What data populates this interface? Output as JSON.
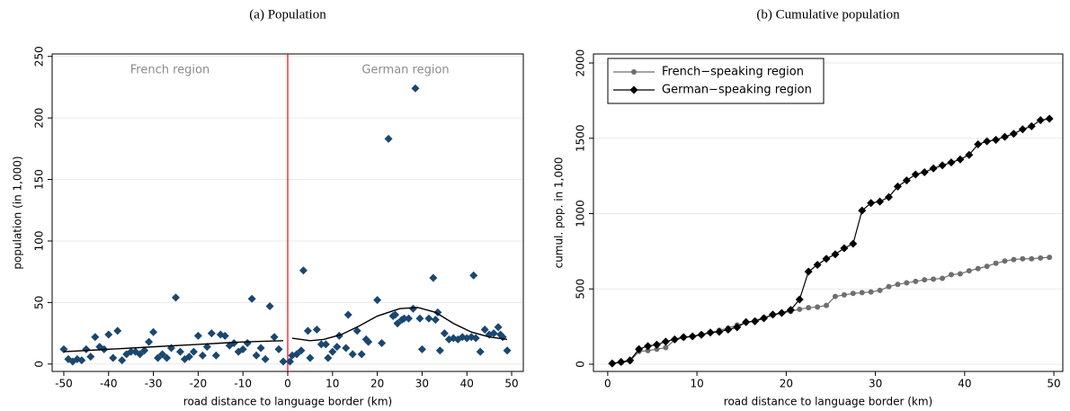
{
  "chart_data": [
    {
      "type": "scatter",
      "title": "(a) Population",
      "xlabel": "road distance to language border (km)",
      "ylabel": "population (in 1,000)",
      "xlim": [
        -52.6,
        52.6
      ],
      "ylim": [
        -6,
        252
      ],
      "xticks": [
        -50,
        -40,
        -30,
        -20,
        -10,
        0,
        10,
        20,
        30,
        40,
        50
      ],
      "yticks": [
        0,
        50,
        100,
        150,
        200,
        250
      ],
      "grid": true,
      "points": {
        "color": "#1a476f",
        "x": [
          -50,
          -49,
          -48,
          -47,
          -46,
          -45,
          -44,
          -43,
          -42,
          -41,
          -40,
          -39,
          -38,
          -37,
          -36,
          -35,
          -34,
          -33,
          -32,
          -31,
          -30,
          -29,
          -28,
          -27,
          -26,
          -25,
          -24,
          -23,
          -22,
          -21,
          -20,
          -19,
          -18,
          -17,
          -16,
          -15,
          -14,
          -13,
          -12,
          -11,
          -10,
          -9,
          -8,
          -7,
          -6,
          -5,
          -4,
          -3,
          -2,
          -1,
          0.5,
          1,
          2,
          3,
          3.5,
          4.5,
          5,
          6.5,
          7.5,
          8.5,
          9,
          10,
          11,
          11.5,
          13.5,
          13,
          14.5,
          15.5,
          16.5,
          17.5,
          18,
          20,
          21,
          22.5,
          23.5,
          24,
          24.5,
          25.5,
          26,
          27,
          28.5,
          28,
          29.5,
          30,
          31.5,
          32.5,
          33,
          33.5,
          34,
          35,
          36,
          37,
          38,
          39,
          40,
          41,
          41.5,
          42,
          43,
          44,
          45,
          46,
          47,
          47.5,
          48,
          49
        ],
        "y": [
          12,
          4,
          2,
          4,
          3,
          12,
          6,
          22,
          14,
          12,
          24,
          5,
          27,
          3,
          8,
          10,
          10,
          8,
          11,
          18,
          26,
          5,
          8,
          5,
          13,
          54,
          10,
          4,
          6,
          10,
          23,
          7,
          14,
          25,
          7,
          24,
          23,
          15,
          17,
          10,
          12,
          17,
          53,
          7,
          13,
          4,
          47,
          22,
          12,
          2,
          2,
          7,
          8,
          11,
          76,
          27,
          5,
          28,
          16,
          16,
          5,
          10,
          14,
          23,
          40,
          13,
          8,
          27,
          8,
          20,
          18,
          52,
          17,
          183,
          39,
          40,
          33,
          36,
          37,
          37,
          224,
          45,
          37,
          12,
          37,
          70,
          36,
          42,
          11,
          25,
          20,
          21,
          20,
          22,
          21,
          22,
          72,
          21,
          10,
          28,
          24,
          25,
          30,
          24,
          22,
          11
        ]
      },
      "fit_lines": [
        {
          "color": "#000000",
          "x": [
            -50,
            -40,
            -30,
            -20,
            -10,
            -1
          ],
          "y": [
            10,
            12,
            14,
            16,
            18,
            19
          ]
        },
        {
          "color": "#000000",
          "x": [
            1,
            5,
            8,
            12,
            16,
            20,
            25,
            29,
            33,
            37,
            41,
            45,
            49
          ],
          "y": [
            21,
            19,
            20,
            24,
            31,
            39,
            45,
            46,
            42,
            33,
            26,
            22,
            20
          ]
        }
      ],
      "cutoff": 0,
      "cutoff_color": "#ff0000",
      "annotations": [
        "French region",
        "German region"
      ],
      "annotation_color": "#8c8c8c"
    },
    {
      "type": "line",
      "title": "(b) Cumulative population",
      "xlabel": "road distance to language border (km)",
      "ylabel": "cumul. pop. in 1,000",
      "xlim": [
        -1.6,
        51
      ],
      "ylim": [
        -48,
        2060
      ],
      "xticks": [
        0,
        10,
        20,
        30,
        40,
        50
      ],
      "yticks": [
        0,
        500,
        1000,
        1500,
        2000
      ],
      "grid": true,
      "legend": "top-left",
      "x": [
        0.5,
        1.5,
        2.5,
        3.5,
        4.5,
        5.5,
        6.5,
        7.5,
        8.5,
        9.5,
        10.5,
        11.5,
        12.5,
        13.5,
        14.5,
        15.5,
        16.5,
        17.5,
        18.5,
        19.5,
        20.5,
        21.5,
        22.5,
        23.5,
        24.5,
        25.5,
        26.5,
        27.5,
        28.5,
        29.5,
        30.5,
        31.5,
        32.5,
        33.5,
        34.5,
        35.5,
        36.5,
        37.5,
        38.5,
        39.5,
        40.5,
        41.5,
        42.5,
        43.5,
        44.5,
        45.5,
        46.5,
        47.5,
        48.5,
        49.5
      ],
      "series": [
        {
          "name": "French−speaking region",
          "color": "#6e6e6e",
          "marker": "circle",
          "values": [
            5,
            10,
            20,
            85,
            90,
            100,
            110,
            160,
            175,
            185,
            200,
            210,
            225,
            240,
            260,
            275,
            290,
            310,
            325,
            340,
            350,
            365,
            375,
            380,
            390,
            450,
            460,
            470,
            475,
            480,
            490,
            515,
            530,
            540,
            550,
            560,
            565,
            570,
            595,
            600,
            620,
            635,
            650,
            670,
            685,
            695,
            700,
            700,
            705,
            710
          ]
        },
        {
          "name": "German−speaking region",
          "color": "#000000",
          "marker": "diamond",
          "values": [
            5,
            15,
            25,
            100,
            120,
            130,
            150,
            165,
            180,
            185,
            195,
            210,
            215,
            230,
            245,
            280,
            285,
            305,
            330,
            340,
            360,
            430,
            615,
            660,
            700,
            730,
            770,
            800,
            1020,
            1070,
            1080,
            1110,
            1180,
            1220,
            1260,
            1275,
            1300,
            1320,
            1340,
            1360,
            1390,
            1460,
            1480,
            1490,
            1510,
            1530,
            1560,
            1580,
            1620,
            1630
          ]
        }
      ]
    }
  ]
}
